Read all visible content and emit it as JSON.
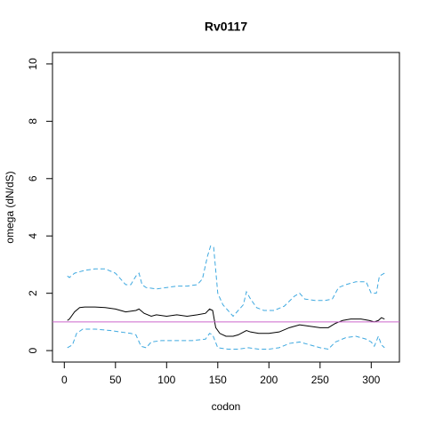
{
  "chart_data": {
    "type": "line",
    "title": "Rv0117",
    "xlabel": "codon",
    "ylabel": "omega (dN/dS)",
    "xlim": [
      -11.56,
      327.56
    ],
    "ylim": [
      -0.4,
      10.4
    ],
    "xticks": [
      0,
      50,
      100,
      150,
      200,
      250,
      300
    ],
    "yticks": [
      0,
      2,
      4,
      6,
      8,
      10
    ],
    "hline": {
      "value": 1,
      "color": "#cc66cc"
    },
    "series": [
      {
        "name": "omega",
        "color": "#000000",
        "dash": false,
        "x": [
          3,
          5,
          10,
          15,
          20,
          30,
          40,
          50,
          55,
          60,
          70,
          73,
          78,
          85,
          90,
          100,
          110,
          120,
          130,
          138,
          142,
          145,
          148,
          152,
          158,
          165,
          170,
          178,
          182,
          190,
          200,
          210,
          220,
          230,
          240,
          250,
          258,
          265,
          272,
          280,
          290,
          298,
          303,
          307,
          310,
          313
        ],
        "values": [
          1.05,
          1.1,
          1.35,
          1.5,
          1.52,
          1.52,
          1.5,
          1.45,
          1.4,
          1.35,
          1.4,
          1.45,
          1.3,
          1.2,
          1.25,
          1.2,
          1.25,
          1.2,
          1.25,
          1.3,
          1.45,
          1.4,
          0.8,
          0.6,
          0.5,
          0.5,
          0.55,
          0.7,
          0.65,
          0.6,
          0.6,
          0.65,
          0.8,
          0.9,
          0.85,
          0.8,
          0.8,
          0.95,
          1.05,
          1.1,
          1.1,
          1.05,
          1.0,
          1.05,
          1.15,
          1.1
        ]
      },
      {
        "name": "upper",
        "color": "#3fa9e0",
        "dash": true,
        "x": [
          3,
          5,
          10,
          20,
          30,
          40,
          50,
          60,
          65,
          70,
          73,
          76,
          80,
          90,
          100,
          110,
          120,
          130,
          135,
          140,
          143,
          146,
          150,
          155,
          160,
          165,
          170,
          175,
          178,
          182,
          188,
          195,
          205,
          215,
          225,
          230,
          235,
          245,
          255,
          262,
          268,
          275,
          285,
          295,
          300,
          305,
          308,
          313
        ],
        "values": [
          2.6,
          2.55,
          2.7,
          2.8,
          2.85,
          2.85,
          2.7,
          2.3,
          2.3,
          2.6,
          2.7,
          2.3,
          2.2,
          2.15,
          2.2,
          2.25,
          2.25,
          2.3,
          2.5,
          3.3,
          3.65,
          3.6,
          2.0,
          1.6,
          1.4,
          1.2,
          1.4,
          1.6,
          2.05,
          1.8,
          1.5,
          1.4,
          1.4,
          1.55,
          1.9,
          2.0,
          1.8,
          1.75,
          1.75,
          1.8,
          2.2,
          2.3,
          2.4,
          2.4,
          2.0,
          2.0,
          2.6,
          2.7
        ]
      },
      {
        "name": "lower",
        "color": "#3fa9e0",
        "dash": true,
        "x": [
          3,
          8,
          12,
          18,
          30,
          45,
          55,
          65,
          70,
          75,
          80,
          85,
          95,
          110,
          125,
          138,
          142,
          145,
          150,
          160,
          170,
          180,
          190,
          200,
          210,
          220,
          230,
          240,
          250,
          258,
          265,
          275,
          285,
          295,
          300,
          303,
          307,
          310,
          313
        ],
        "values": [
          0.1,
          0.2,
          0.6,
          0.75,
          0.75,
          0.7,
          0.65,
          0.6,
          0.55,
          0.15,
          0.1,
          0.3,
          0.35,
          0.35,
          0.35,
          0.4,
          0.6,
          0.55,
          0.1,
          0.05,
          0.05,
          0.1,
          0.05,
          0.05,
          0.1,
          0.25,
          0.3,
          0.2,
          0.1,
          0.05,
          0.3,
          0.45,
          0.5,
          0.4,
          0.3,
          0.15,
          0.5,
          0.2,
          0.1
        ]
      }
    ]
  }
}
